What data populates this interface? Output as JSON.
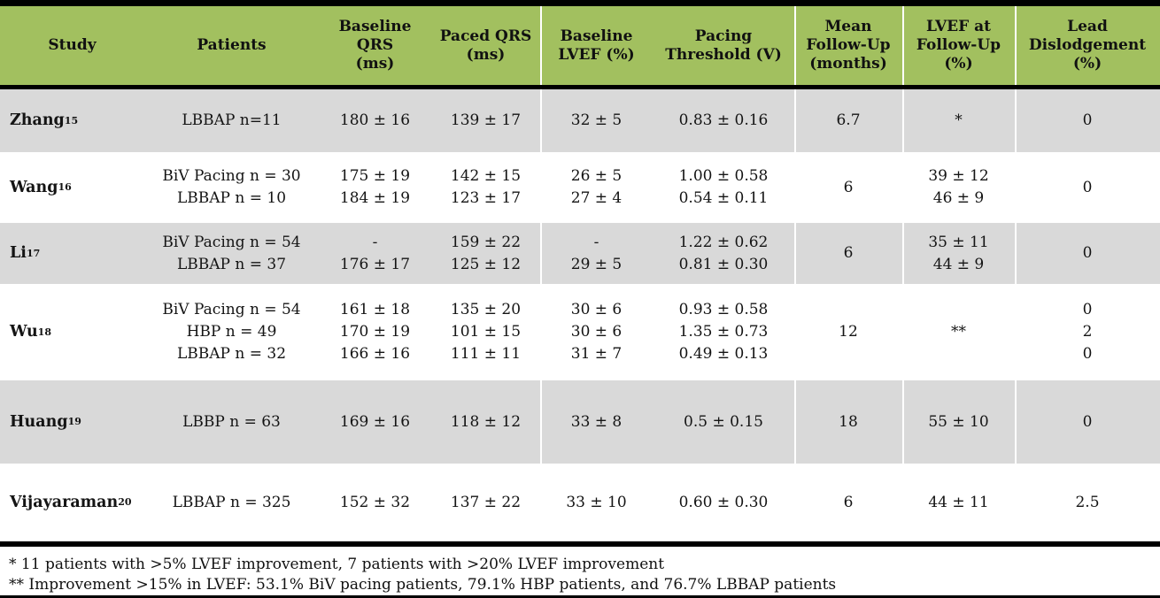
{
  "colors": {
    "header_green": "#a2c05f",
    "band_gray": "#d9d9d9",
    "rule_black": "#000000",
    "text": "#141414"
  },
  "table": {
    "columns": [
      {
        "id": "study",
        "label_lines": [
          "Study"
        ]
      },
      {
        "id": "patients",
        "label_lines": [
          "Patients"
        ]
      },
      {
        "id": "baseline_qrs",
        "label_lines": [
          "Baseline",
          "QRS",
          "(ms)"
        ]
      },
      {
        "id": "paced_qrs",
        "label_lines": [
          "Paced QRS",
          "(ms)"
        ]
      },
      {
        "id": "baseline_lvef",
        "label_lines": [
          "Baseline",
          "LVEF (%)"
        ]
      },
      {
        "id": "pacing_threshold",
        "label_lines": [
          "Pacing",
          "Threshold (V)"
        ]
      },
      {
        "id": "mean_follow_up",
        "label_lines": [
          "Mean",
          "Follow-Up",
          "(months)"
        ]
      },
      {
        "id": "lvef_follow_up",
        "label_lines": [
          "LVEF at",
          "Follow-Up",
          "(%)"
        ]
      },
      {
        "id": "lead_dislodgement",
        "label_lines": [
          "Lead",
          "Dislodgement",
          "(%)"
        ]
      }
    ],
    "rows": [
      {
        "study": "Zhang",
        "ref": "15",
        "ref_space": " ",
        "patients": [
          "LBBAP n=11"
        ],
        "baseline_qrs": [
          "180 ± 16"
        ],
        "paced_qrs": [
          "139 ± 17"
        ],
        "baseline_lvef": [
          "32 ± 5"
        ],
        "pacing_threshold": [
          "0.83 ± 0.16"
        ],
        "mean_follow_up": [
          "6.7"
        ],
        "lvef_follow_up": [
          "*"
        ],
        "lead_dislodgement": [
          "0"
        ]
      },
      {
        "study": "Wang",
        "ref": "16",
        "ref_space": "",
        "patients": [
          "BiV Pacing n = 30",
          "LBBAP n = 10"
        ],
        "baseline_qrs": [
          "175 ± 19",
          "184 ± 19"
        ],
        "paced_qrs": [
          "142 ± 15",
          "123 ± 17"
        ],
        "baseline_lvef": [
          "26 ± 5",
          "27 ± 4"
        ],
        "pacing_threshold": [
          "1.00 ± 0.58",
          "0.54 ± 0.11"
        ],
        "mean_follow_up": [
          "6"
        ],
        "lvef_follow_up": [
          "39 ± 12",
          "46 ± 9"
        ],
        "lead_dislodgement": [
          "0"
        ]
      },
      {
        "study": "Li",
        "ref": "17",
        "ref_space": "",
        "patients": [
          "BiV Pacing n = 54",
          "LBBAP n = 37"
        ],
        "baseline_qrs": [
          "-",
          "176 ± 17"
        ],
        "paced_qrs": [
          "159 ± 22",
          "125 ± 12"
        ],
        "baseline_lvef": [
          "-",
          "29 ± 5"
        ],
        "pacing_threshold": [
          "1.22 ± 0.62",
          "0.81 ± 0.30"
        ],
        "mean_follow_up": [
          "6"
        ],
        "lvef_follow_up": [
          "35 ± 11",
          "44 ± 9"
        ],
        "lead_dislodgement": [
          "0"
        ]
      },
      {
        "study": "Wu",
        "ref": "18",
        "ref_space": "",
        "patients": [
          "BiV Pacing n = 54",
          "HBP n = 49",
          "LBBAP n = 32"
        ],
        "baseline_qrs": [
          "161 ± 18",
          "170 ± 19",
          "166 ± 16"
        ],
        "paced_qrs": [
          "135 ± 20",
          "101 ± 15",
          "111 ± 11"
        ],
        "baseline_lvef": [
          "30 ± 6",
          "30 ± 6",
          "31 ± 7"
        ],
        "pacing_threshold": [
          "0.93 ± 0.58",
          "1.35 ± 0.73",
          "0.49 ± 0.13"
        ],
        "mean_follow_up": [
          "12"
        ],
        "lvef_follow_up": [
          "**"
        ],
        "lead_dislodgement": [
          "0",
          "2",
          "0"
        ]
      },
      {
        "study": "Huang",
        "ref": "19",
        "ref_space": "",
        "patients": [
          "LBBP n = 63"
        ],
        "baseline_qrs": [
          "169 ± 16"
        ],
        "paced_qrs": [
          "118 ± 12"
        ],
        "baseline_lvef": [
          "33 ± 8"
        ],
        "pacing_threshold": [
          "0.5 ± 0.15"
        ],
        "mean_follow_up": [
          "18"
        ],
        "lvef_follow_up": [
          "55 ± 10"
        ],
        "lead_dislodgement": [
          "0"
        ]
      },
      {
        "study": "Vijayaraman",
        "ref": "20",
        "ref_space": "",
        "patients": [
          "LBBAP n = 325"
        ],
        "baseline_qrs": [
          "152 ± 32"
        ],
        "paced_qrs": [
          "137 ± 22"
        ],
        "baseline_lvef": [
          "33 ± 10"
        ],
        "pacing_threshold": [
          "0.60 ± 0.30"
        ],
        "mean_follow_up": [
          "6"
        ],
        "lvef_follow_up": [
          "44 ± 11"
        ],
        "lead_dislodgement": [
          "2.5"
        ]
      }
    ],
    "footnotes": [
      "* 11 patients with >5% LVEF improvement, 7 patients with >20% LVEF improvement",
      "** Improvement >15% in LVEF: 53.1% BiV pacing patients, 79.1% HBP patients, and 76.7% LBBAP patients"
    ]
  }
}
